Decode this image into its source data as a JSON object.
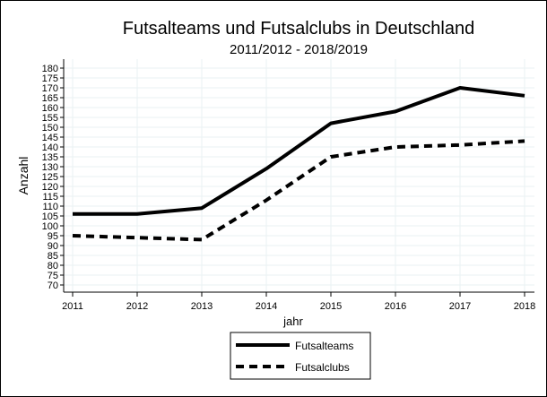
{
  "chart_data": {
    "type": "line",
    "title": "Futsalteams und Futsalclubs in Deutschland",
    "subtitle": "2011/2012 - 2018/2019",
    "xlabel": "jahr",
    "ylabel": "Anzahl",
    "x": [
      2011,
      2012,
      2013,
      2014,
      2015,
      2016,
      2017,
      2018
    ],
    "ylim": [
      70,
      180
    ],
    "yticks": [
      70,
      75,
      80,
      85,
      90,
      95,
      100,
      105,
      110,
      115,
      120,
      125,
      130,
      135,
      140,
      145,
      150,
      155,
      160,
      165,
      170,
      175,
      180
    ],
    "grid": true,
    "legend_placement": "bottom",
    "series": [
      {
        "name": "Futsalteams",
        "style": "solid",
        "color": "#000000",
        "values": [
          106,
          106,
          109,
          129,
          152,
          158,
          170,
          166
        ]
      },
      {
        "name": "Futsalclubs",
        "style": "dashed",
        "color": "#000000",
        "values": [
          95,
          94,
          93,
          113,
          135,
          140,
          141,
          143
        ]
      }
    ]
  }
}
